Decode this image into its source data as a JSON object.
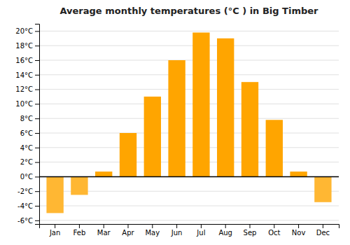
{
  "chart_data": {
    "type": "bar",
    "title": "Average monthly temperatures (°C ) in Big Timber",
    "categories": [
      "Jan",
      "Feb",
      "Mar",
      "Apr",
      "May",
      "Jun",
      "Jul",
      "Aug",
      "Sep",
      "Oct",
      "Nov",
      "Dec"
    ],
    "values": [
      -5.0,
      -2.5,
      0.7,
      6.0,
      11.0,
      16.0,
      19.8,
      19.0,
      13.0,
      7.8,
      0.7,
      -3.5
    ],
    "colors": [
      "#FFB733",
      "#FFB733",
      "#FFA500",
      "#FFA500",
      "#FFA500",
      "#FFA500",
      "#FFA500",
      "#FFA500",
      "#FFA500",
      "#FFA500",
      "#FFA500",
      "#FFB733"
    ],
    "ylim": [
      -6.5,
      21
    ],
    "yticks": [
      {
        "value": -6,
        "label": "-6°C"
      },
      {
        "value": -4,
        "label": "-4°C"
      },
      {
        "value": -2,
        "label": "-2°C"
      },
      {
        "value": 0,
        "label": "0°C"
      },
      {
        "value": 2,
        "label": "2°C"
      },
      {
        "value": 4,
        "label": "4°C"
      },
      {
        "value": 6,
        "label": "6°C"
      },
      {
        "value": 8,
        "label": "8°C"
      },
      {
        "value": 10,
        "label": "10°C"
      },
      {
        "value": 12,
        "label": "12°C"
      },
      {
        "value": 14,
        "label": "14°C"
      },
      {
        "value": 16,
        "label": "16°C"
      },
      {
        "value": 18,
        "label": "18°C"
      },
      {
        "value": 20,
        "label": "20°C"
      }
    ],
    "grid": true
  }
}
